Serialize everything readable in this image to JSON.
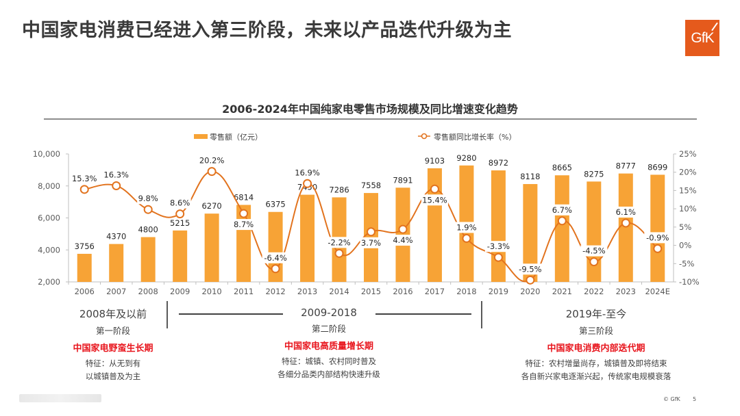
{
  "page": {
    "title": "中国家电消费已经进入第三阶段，未来以产品迭代升级为主",
    "logo_text": "GfK",
    "footer_copyright": "© GfK",
    "page_number": "5"
  },
  "colors": {
    "bar": "#f7a336",
    "line": "#e2731e",
    "logo": "#e55a1c",
    "phase_name": "#e8141c"
  },
  "chart_data": {
    "type": "bar",
    "title": "2006-2024年中国纯家电零售市场规模及同比增速变化趋势",
    "categories": [
      "2006",
      "2007",
      "2008",
      "2009",
      "2010",
      "2011",
      "2012",
      "2013",
      "2014",
      "2015",
      "2016",
      "2017",
      "2018",
      "2019",
      "2020",
      "2021",
      "2022",
      "2023",
      "2024E"
    ],
    "series": [
      {
        "name": "零售额（亿元）",
        "type": "bar",
        "axis": "left",
        "values": [
          3756,
          4370,
          4800,
          5215,
          6270,
          6814,
          6375,
          7450,
          7286,
          7558,
          7891,
          9103,
          9280,
          8972,
          8118,
          8665,
          8275,
          8777,
          8699
        ]
      },
      {
        "name": "零售额同比增长率（%）",
        "type": "line",
        "axis": "right",
        "values": [
          15.3,
          16.3,
          9.8,
          8.6,
          20.2,
          8.7,
          -6.4,
          16.9,
          -2.2,
          3.7,
          4.4,
          15.4,
          1.9,
          -3.3,
          -9.5,
          6.7,
          -4.5,
          6.1,
          -0.9
        ]
      }
    ],
    "bar_labels": [
      "3756",
      "4370",
      "4800",
      "5215",
      "6270",
      "6814",
      "6375",
      "7450",
      "7286",
      "7558",
      "7891",
      "9103",
      "9280",
      "8972",
      "8118",
      "8665",
      "8275",
      "8777",
      "8699"
    ],
    "line_labels": [
      "15.3%",
      "16.3%",
      "9.8%",
      "8.6%",
      "20.2%",
      "8.7%",
      "-6.4%",
      "16.9%",
      "-2.2%",
      "3.7%",
      "4.4%",
      "15.4%",
      "1.9%",
      "-3.3%",
      "-9.5%",
      "6.7%",
      "-4.5%",
      "6.1%",
      "-0.9%"
    ],
    "left_axis": {
      "ylim": [
        2000,
        10000
      ],
      "ticks": [
        "2,000",
        "4,000",
        "6,000",
        "8,000",
        "10,000"
      ]
    },
    "right_axis": {
      "ylim": [
        -10,
        25
      ],
      "ticks": [
        "-10%",
        "-5%",
        "0%",
        "5%",
        "10%",
        "15%",
        "20%",
        "25%"
      ]
    },
    "legend": {
      "placement": "top",
      "items": [
        "零售额（亿元）",
        "零售额同比增长率（%）"
      ]
    },
    "grid": false
  },
  "phases": [
    {
      "period": "2008年及以前",
      "stage": "第一阶段",
      "name": "中国家电野蛮生长期",
      "features": [
        "特征：从无到有",
        "以城镇普及为主"
      ]
    },
    {
      "period": "2009-2018",
      "stage": "第二阶段",
      "name": "中国家电高质量增长期",
      "features": [
        "特征：城镇、农村同时普及",
        "各细分品类内部结构快速升级"
      ]
    },
    {
      "period": "2019年-至今",
      "stage": "第三阶段",
      "name": "中国家电消费内部迭代期",
      "features": [
        "特征：农村增量尚存，城镇普及即将结束",
        "各自新兴家电逐渐兴起，传统家电规模衰落"
      ]
    }
  ]
}
